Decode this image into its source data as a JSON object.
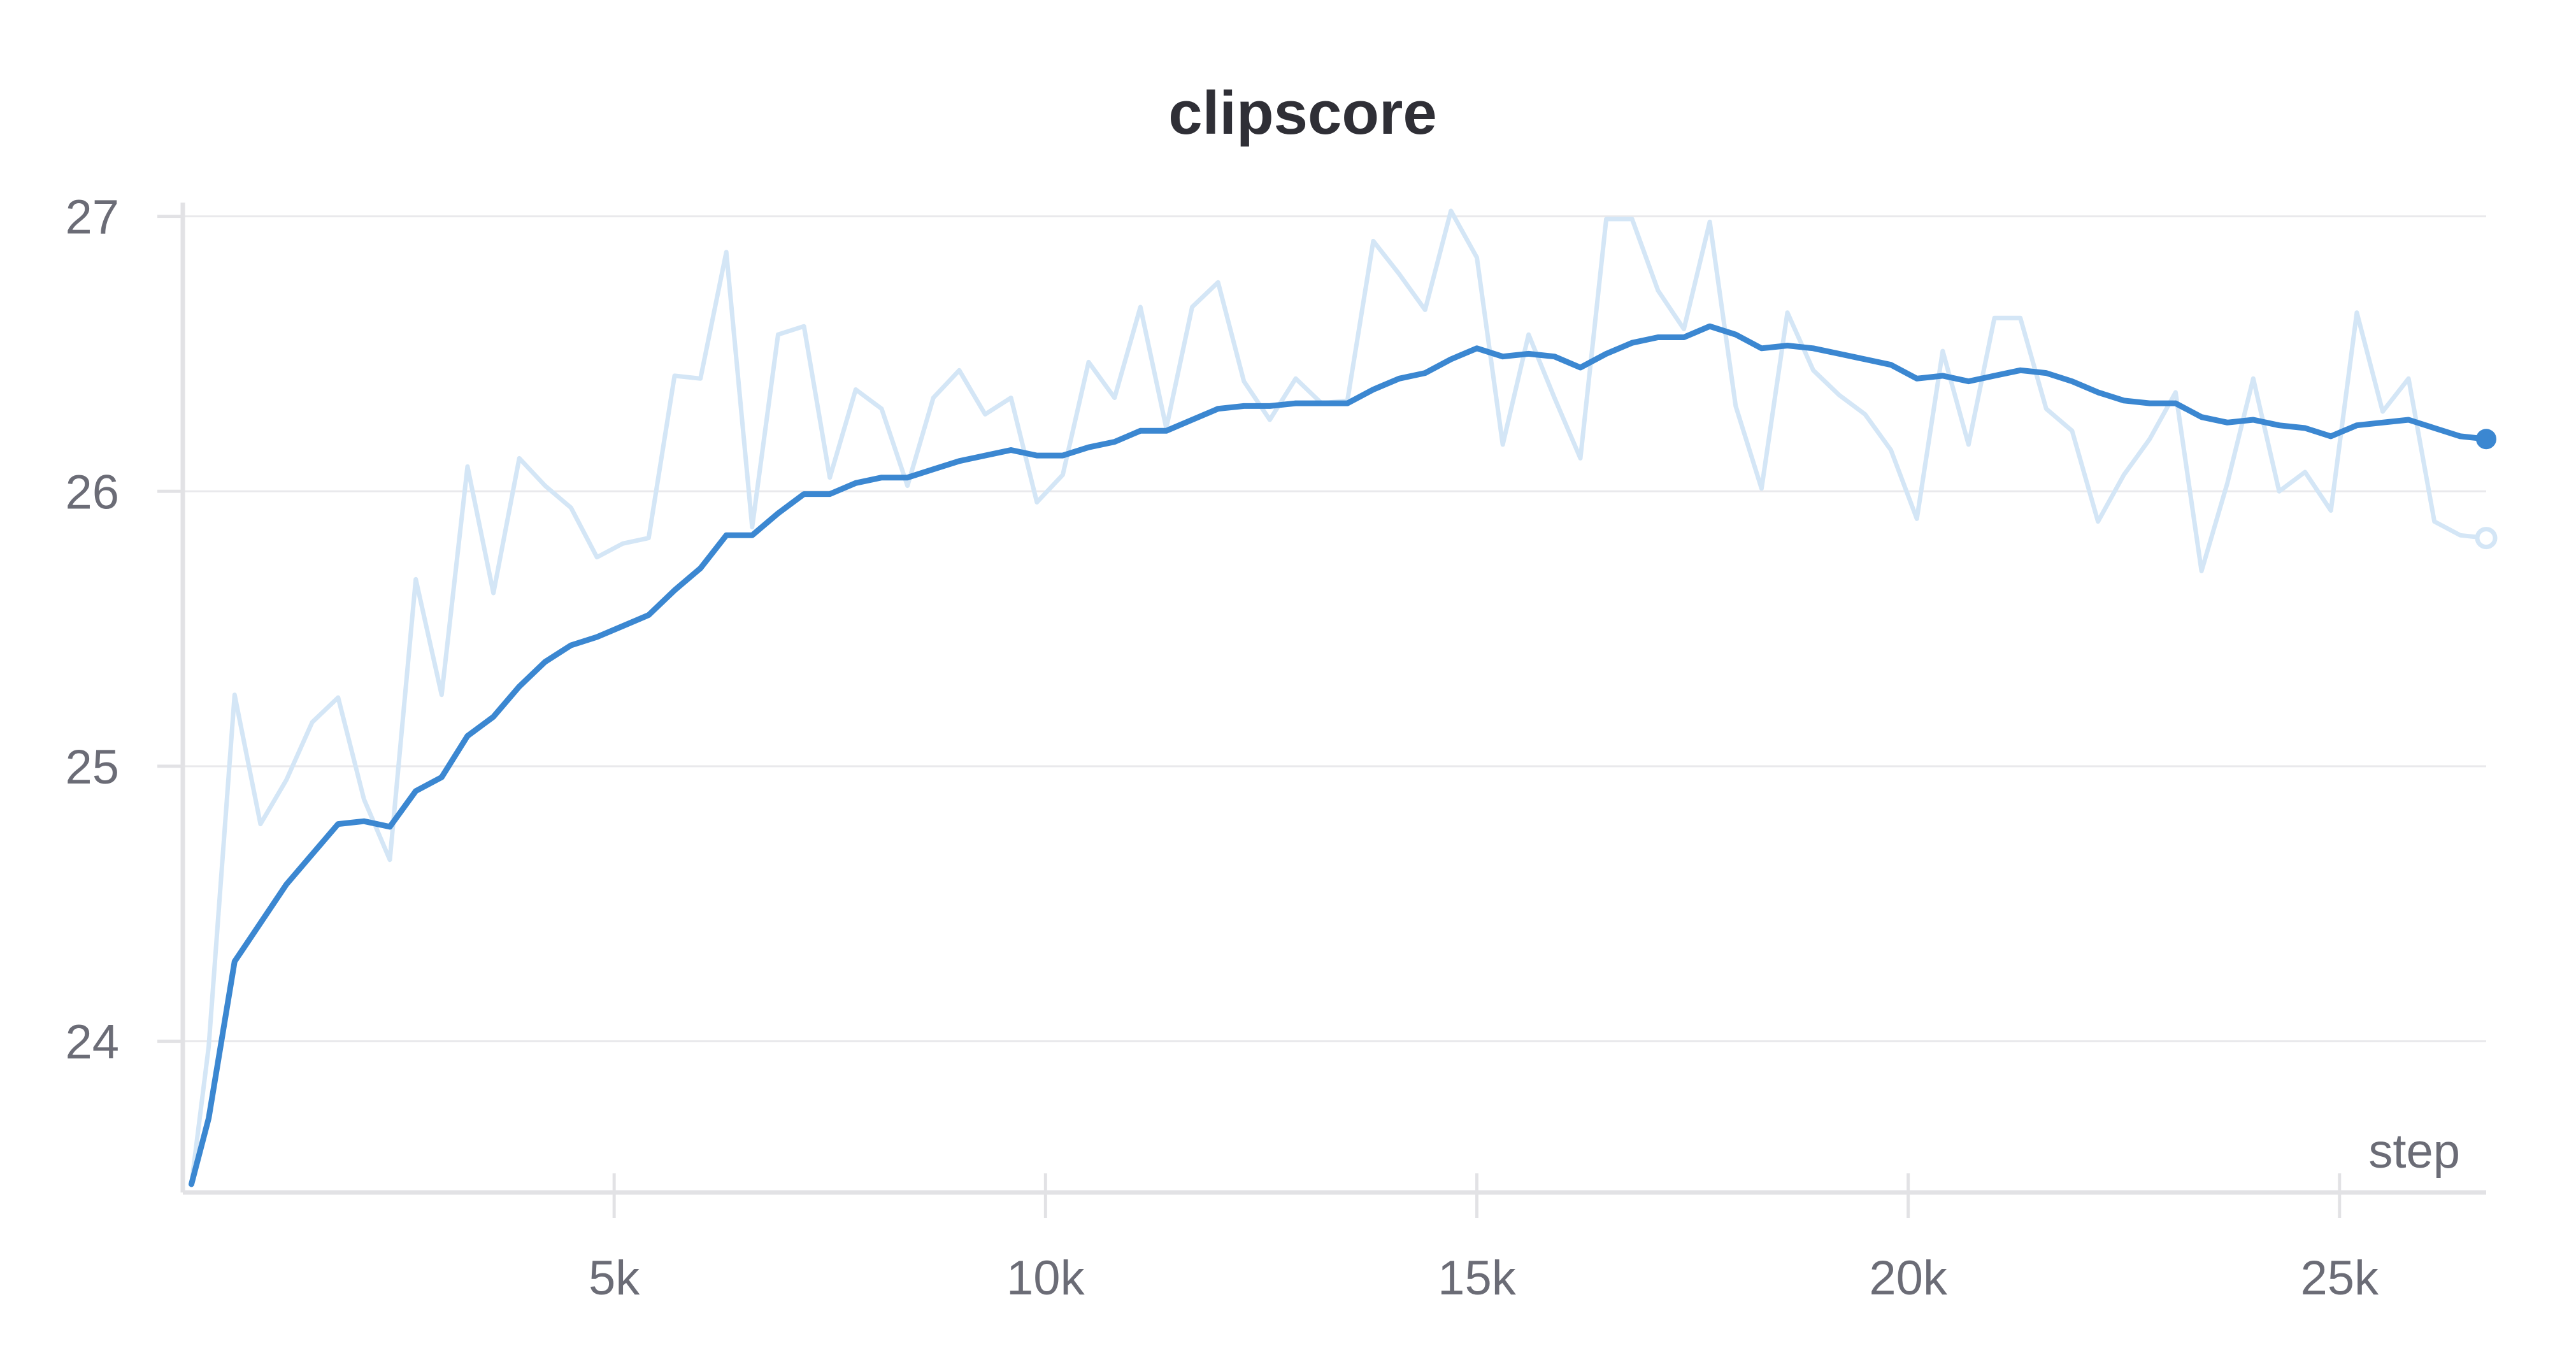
{
  "chart_data": {
    "type": "line",
    "title": "clipscore",
    "xlabel": "step",
    "ylabel": "",
    "xlim": [
      0,
      26700
    ],
    "ylim": [
      23.45,
      27.05
    ],
    "x_ticks": [
      5000,
      10000,
      15000,
      20000,
      25000
    ],
    "x_tick_labels": [
      "5k",
      "10k",
      "15k",
      "20k",
      "25k"
    ],
    "y_ticks": [
      24,
      25,
      26,
      27
    ],
    "y_tick_labels": [
      "24",
      "25",
      "26",
      "27"
    ],
    "grid": true,
    "legend": "none",
    "colors": {
      "smoothed": "#3b87d1",
      "raw": "#d4e6f6",
      "grid": "#e9e9ec",
      "axis": "#e2e2e5"
    },
    "x": [
      100,
      300,
      600,
      900,
      1200,
      1500,
      1800,
      2100,
      2400,
      2700,
      3000,
      3300,
      3600,
      3900,
      4200,
      4500,
      4800,
      5100,
      5400,
      5700,
      6000,
      6300,
      6600,
      6900,
      7200,
      7500,
      7800,
      8100,
      8400,
      8700,
      9000,
      9300,
      9600,
      9900,
      10200,
      10500,
      10800,
      11100,
      11400,
      11700,
      12000,
      12300,
      12600,
      12900,
      13200,
      13500,
      13800,
      14100,
      14400,
      14700,
      15000,
      15300,
      15600,
      15900,
      16200,
      16500,
      16800,
      17100,
      17400,
      17700,
      18000,
      18300,
      18600,
      18900,
      19200,
      19500,
      19800,
      20100,
      20400,
      20700,
      21000,
      21300,
      21600,
      21900,
      22200,
      22500,
      22800,
      23100,
      23400,
      23700,
      24000,
      24300,
      24600,
      24900,
      25200,
      25500,
      25800,
      26100,
      26400,
      26700
    ],
    "series": [
      {
        "role": "raw",
        "values": [
          23.48,
          23.98,
          25.26,
          24.79,
          24.95,
          25.16,
          25.25,
          24.88,
          24.66,
          25.68,
          25.26,
          26.09,
          25.63,
          26.12,
          26.02,
          25.94,
          25.76,
          25.81,
          25.83,
          26.42,
          26.41,
          26.87,
          25.87,
          26.57,
          26.6,
          26.05,
          26.37,
          26.3,
          26.02,
          26.34,
          26.44,
          26.28,
          26.34,
          25.96,
          26.06,
          26.47,
          26.34,
          26.67,
          26.23,
          26.67,
          26.76,
          26.4,
          26.26,
          26.41,
          26.32,
          26.33,
          26.91,
          26.79,
          26.66,
          27.02,
          26.85,
          26.17,
          26.57,
          26.34,
          26.12,
          26.99,
          26.99,
          26.73,
          26.59,
          26.98,
          26.31,
          26.01,
          26.65,
          26.44,
          26.35,
          26.28,
          26.15,
          25.9,
          26.51,
          26.17,
          26.63,
          26.63,
          26.3,
          26.22,
          25.89,
          26.06,
          26.19,
          26.36,
          25.71,
          26.03,
          26.41,
          26.0,
          26.07,
          25.93,
          26.65,
          26.29,
          26.41,
          25.89,
          25.84,
          25.83
        ]
      },
      {
        "role": "smoothed",
        "values": [
          23.48,
          23.72,
          24.29,
          24.43,
          24.57,
          24.68,
          24.79,
          24.8,
          24.78,
          24.91,
          24.96,
          25.11,
          25.18,
          25.29,
          25.38,
          25.44,
          25.47,
          25.51,
          25.55,
          25.64,
          25.72,
          25.84,
          25.84,
          25.92,
          25.99,
          25.99,
          26.03,
          26.05,
          26.05,
          26.08,
          26.11,
          26.13,
          26.15,
          26.13,
          26.13,
          26.16,
          26.18,
          26.22,
          26.22,
          26.26,
          26.3,
          26.31,
          26.31,
          26.32,
          26.32,
          26.32,
          26.37,
          26.41,
          26.43,
          26.48,
          26.52,
          26.49,
          26.5,
          26.49,
          26.45,
          26.5,
          26.54,
          26.56,
          26.56,
          26.6,
          26.57,
          26.52,
          26.53,
          26.52,
          26.5,
          26.48,
          26.46,
          26.41,
          26.42,
          26.4,
          26.42,
          26.44,
          26.43,
          26.4,
          26.36,
          26.33,
          26.32,
          26.32,
          26.27,
          26.25,
          26.26,
          26.24,
          26.23,
          26.2,
          26.24,
          26.25,
          26.26,
          26.23,
          26.2,
          26.19
        ]
      }
    ]
  }
}
